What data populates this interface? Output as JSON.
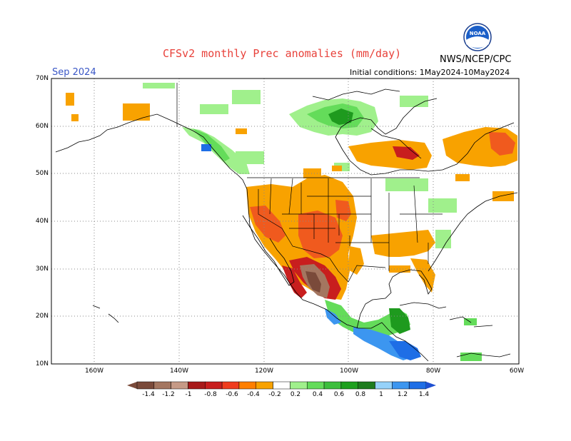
{
  "title": "CFSv2 monthly Prec anomalies (mm/day)",
  "agency": "NWS/NCEP/CPC",
  "logo_text": "NOAA",
  "month_label": "Sep 2024",
  "initial_conditions": "Initial conditions: 1May2024-10May2024",
  "axes": {
    "lat_labels": [
      "70N",
      "60N",
      "50N",
      "40N",
      "30N",
      "20N",
      "10N"
    ],
    "lon_labels": [
      "160W",
      "140W",
      "120W",
      "100W",
      "80W",
      "60W"
    ]
  },
  "colorbar": {
    "labels": [
      "-1.4",
      "-1.2",
      "-1",
      "-0.8",
      "-0.6",
      "-0.4",
      "-0.2",
      "0.2",
      "0.4",
      "0.6",
      "0.8",
      "1",
      "1.2",
      "1.4"
    ],
    "colors": [
      "#7a4a3a",
      "#a47660",
      "#c69a86",
      "#a81a1a",
      "#c81e1e",
      "#f03c1e",
      "#ff7f00",
      "#f8a200",
      "#ffffff",
      "#a0f08c",
      "#64dc5a",
      "#3cbe3c",
      "#1ea01e",
      "#1e7c1e",
      "#96d2fa",
      "#3c96f0",
      "#1e6ee6"
    ],
    "low_arrow_color": "#7a4a3a",
    "high_arrow_color": "#1e50d2"
  },
  "colors": {
    "dry_light": "#f8a200",
    "dry_mid": "#f05a1e",
    "dry_strong": "#c81e1e",
    "dry_extreme": "#a47660",
    "dry_extreme2": "#7a4a3a",
    "wet_light": "#a0f08c",
    "wet_mid": "#64dc5a",
    "wet_strong": "#3cbe3c",
    "wet_deep": "#1e9a1e",
    "blue_light": "#3c96f0",
    "blue_deep": "#1e6ee6"
  }
}
